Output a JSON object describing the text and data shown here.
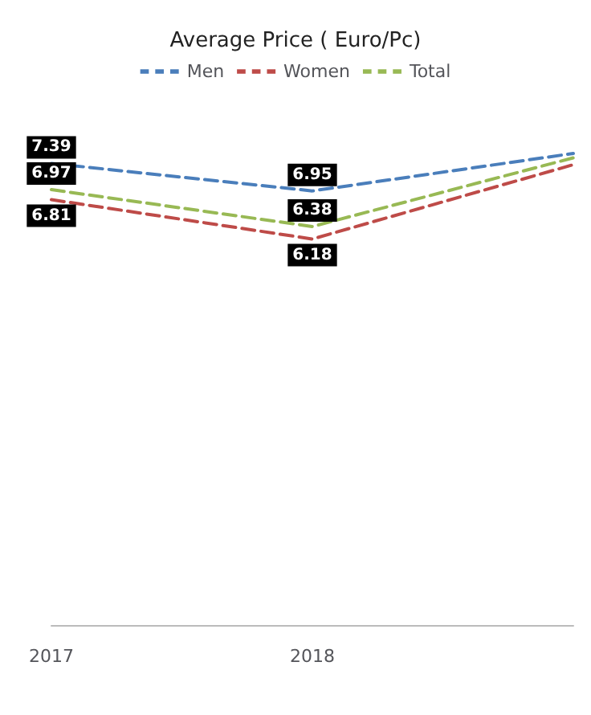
{
  "chart_data": {
    "type": "line",
    "title": "Average Price ( Euro/Pc)",
    "categories": [
      "2017",
      "2018",
      null
    ],
    "series": [
      {
        "name": "Men",
        "color": "#4a7ebb",
        "values": [
          7.39,
          6.95,
          7.55
        ],
        "value_labels": [
          "7.39",
          "6.95",
          null
        ]
      },
      {
        "name": "Women",
        "color": "#be4b48",
        "values": [
          6.81,
          6.18,
          7.37
        ],
        "value_labels": [
          "6.81",
          "6.18",
          null
        ]
      },
      {
        "name": "Total",
        "color": "#98b954",
        "values": [
          6.97,
          6.38,
          7.48
        ],
        "value_labels": [
          "6.97",
          "6.38",
          null
        ]
      }
    ],
    "legend": "top",
    "line_style": "dashed",
    "marker": "none",
    "grid": false
  }
}
